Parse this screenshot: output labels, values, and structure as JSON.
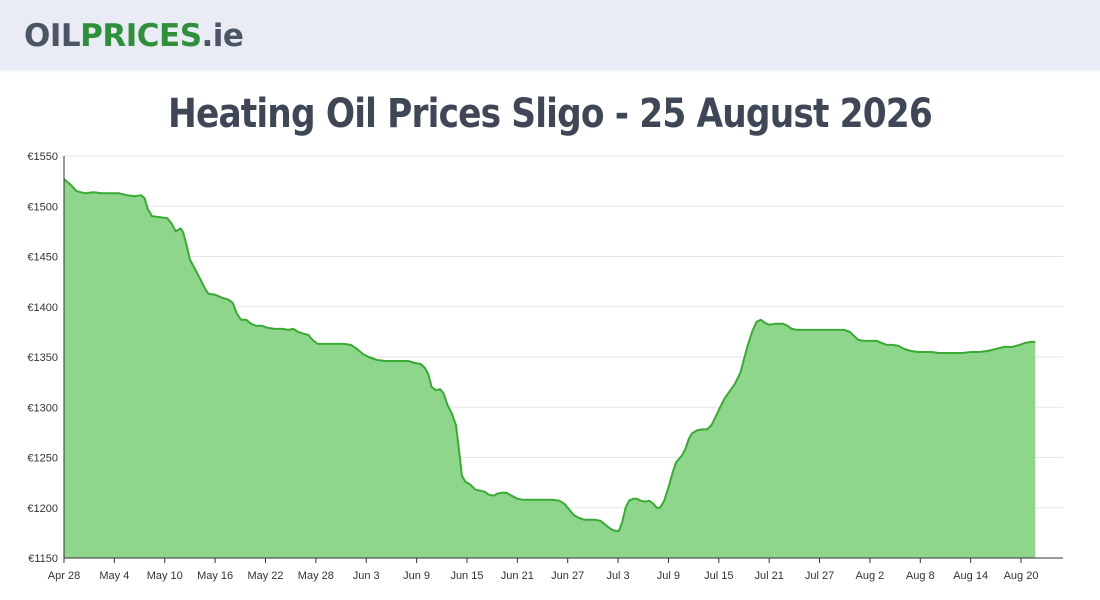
{
  "header": {
    "logo": {
      "part1": "OIL",
      "part2": "PRICES",
      "part3": ".ie"
    }
  },
  "page": {
    "title": "Heating Oil Prices Sligo - 25 August 2026"
  },
  "colors": {
    "line": "#3aaa35",
    "fill": "#8fd68d",
    "grid": "#e6e6e6",
    "axis": "#333333"
  },
  "chart_data": {
    "type": "area",
    "title": "",
    "xlabel": "",
    "ylabel": "",
    "ylim": [
      1150,
      1550
    ],
    "yticks": [
      1150,
      1200,
      1250,
      1300,
      1350,
      1400,
      1450,
      1500,
      1550
    ],
    "y_tick_prefix": "€",
    "grid": true,
    "legend": "none",
    "x_tick_labels": [
      "Apr 28",
      "May 4",
      "May 10",
      "May 16",
      "May 22",
      "May 28",
      "Jun 3",
      "Jun 9",
      "Jun 15",
      "Jun 21",
      "Jun 27",
      "Jul 3",
      "Jul 9",
      "Jul 15",
      "Jul 21",
      "Jul 27",
      "Aug 2",
      "Aug 8",
      "Aug 14",
      "Aug 20"
    ],
    "x_range_days": [
      0,
      119
    ],
    "points": [
      [
        0,
        1527
      ],
      [
        0.7,
        1522
      ],
      [
        1.5,
        1515
      ],
      [
        2.5,
        1513
      ],
      [
        3.5,
        1514
      ],
      [
        4.5,
        1513
      ],
      [
        5.5,
        1513
      ],
      [
        6.5,
        1513
      ],
      [
        7.5,
        1511
      ],
      [
        8.5,
        1510
      ],
      [
        9.2,
        1511
      ],
      [
        9.6,
        1508
      ],
      [
        10,
        1497
      ],
      [
        10.5,
        1490
      ],
      [
        11.5,
        1489
      ],
      [
        12.3,
        1488
      ],
      [
        12.8,
        1483
      ],
      [
        13.3,
        1475
      ],
      [
        13.9,
        1478
      ],
      [
        14.2,
        1474
      ],
      [
        14.7,
        1458
      ],
      [
        15,
        1447
      ],
      [
        15.7,
        1436
      ],
      [
        16.2,
        1428
      ],
      [
        16.8,
        1418
      ],
      [
        17.2,
        1413
      ],
      [
        18,
        1412
      ],
      [
        18.8,
        1409
      ],
      [
        19.6,
        1407
      ],
      [
        20.1,
        1404
      ],
      [
        20.6,
        1393
      ],
      [
        21.1,
        1387
      ],
      [
        21.7,
        1387
      ],
      [
        22.3,
        1383
      ],
      [
        22.9,
        1381
      ],
      [
        23.6,
        1381
      ],
      [
        24.3,
        1379
      ],
      [
        25.1,
        1378
      ],
      [
        26,
        1378
      ],
      [
        26.7,
        1377
      ],
      [
        27.3,
        1378
      ],
      [
        27.9,
        1375
      ],
      [
        28.6,
        1373
      ],
      [
        29.1,
        1372
      ],
      [
        29.6,
        1367
      ],
      [
        30.2,
        1363
      ],
      [
        31,
        1363
      ],
      [
        32,
        1363
      ],
      [
        33.3,
        1363
      ],
      [
        34.2,
        1362
      ],
      [
        34.9,
        1358
      ],
      [
        35.6,
        1353
      ],
      [
        36.3,
        1350
      ],
      [
        37.3,
        1347
      ],
      [
        38.3,
        1346
      ],
      [
        39.3,
        1346
      ],
      [
        40.3,
        1346
      ],
      [
        41,
        1346
      ],
      [
        41.8,
        1344
      ],
      [
        42.5,
        1343
      ],
      [
        43,
        1339
      ],
      [
        43.4,
        1333
      ],
      [
        43.8,
        1320
      ],
      [
        44.3,
        1317
      ],
      [
        44.8,
        1318
      ],
      [
        45.2,
        1314
      ],
      [
        45.7,
        1302
      ],
      [
        46.2,
        1294
      ],
      [
        46.7,
        1282
      ],
      [
        47.1,
        1254
      ],
      [
        47.4,
        1232
      ],
      [
        47.8,
        1226
      ],
      [
        48.4,
        1223
      ],
      [
        49,
        1218
      ],
      [
        49.6,
        1217
      ],
      [
        50.1,
        1216
      ],
      [
        50.6,
        1213
      ],
      [
        51.2,
        1212
      ],
      [
        51.6,
        1214
      ],
      [
        52.1,
        1215
      ],
      [
        52.7,
        1215
      ],
      [
        53.3,
        1212
      ],
      [
        54,
        1209
      ],
      [
        54.6,
        1208
      ],
      [
        55.3,
        1208
      ],
      [
        56.2,
        1208
      ],
      [
        57.2,
        1208
      ],
      [
        58.2,
        1208
      ],
      [
        59,
        1207
      ],
      [
        59.6,
        1204
      ],
      [
        60.2,
        1198
      ],
      [
        60.7,
        1193
      ],
      [
        61.3,
        1190
      ],
      [
        62,
        1188
      ],
      [
        62.6,
        1188
      ],
      [
        63.3,
        1188
      ],
      [
        63.9,
        1187
      ],
      [
        64.5,
        1183
      ],
      [
        65.1,
        1179
      ],
      [
        65.7,
        1177
      ],
      [
        66.1,
        1177
      ],
      [
        66.5,
        1186
      ],
      [
        66.9,
        1200
      ],
      [
        67.3,
        1207
      ],
      [
        67.8,
        1209
      ],
      [
        68.2,
        1209
      ],
      [
        68.7,
        1207
      ],
      [
        69.2,
        1206
      ],
      [
        69.7,
        1207
      ],
      [
        70.2,
        1204
      ],
      [
        70.6,
        1200
      ],
      [
        71,
        1200
      ],
      [
        71.5,
        1207
      ],
      [
        72,
        1220
      ],
      [
        72.5,
        1235
      ],
      [
        72.9,
        1245
      ],
      [
        73.6,
        1252
      ],
      [
        74,
        1258
      ],
      [
        74.4,
        1268
      ],
      [
        74.8,
        1274
      ],
      [
        75.4,
        1277
      ],
      [
        76,
        1278
      ],
      [
        76.6,
        1278
      ],
      [
        77.1,
        1282
      ],
      [
        77.6,
        1290
      ],
      [
        78.1,
        1299
      ],
      [
        78.7,
        1309
      ],
      [
        79.3,
        1316
      ],
      [
        79.9,
        1323
      ],
      [
        80.6,
        1335
      ],
      [
        81,
        1348
      ],
      [
        81.5,
        1363
      ],
      [
        82,
        1376
      ],
      [
        82.5,
        1385
      ],
      [
        83,
        1387
      ],
      [
        83.5,
        1384
      ],
      [
        84,
        1382
      ],
      [
        84.8,
        1383
      ],
      [
        85.7,
        1383
      ],
      [
        86.2,
        1381
      ],
      [
        86.7,
        1378
      ],
      [
        87.3,
        1377
      ],
      [
        88.3,
        1377
      ],
      [
        89.3,
        1377
      ],
      [
        90.3,
        1377
      ],
      [
        91.3,
        1377
      ],
      [
        92.3,
        1377
      ],
      [
        93,
        1377
      ],
      [
        93.6,
        1375
      ],
      [
        94.1,
        1371
      ],
      [
        94.6,
        1367
      ],
      [
        95.3,
        1366
      ],
      [
        96.1,
        1366
      ],
      [
        96.8,
        1366
      ],
      [
        97.4,
        1364
      ],
      [
        98,
        1362
      ],
      [
        98.7,
        1362
      ],
      [
        99.4,
        1361
      ],
      [
        100.1,
        1358
      ],
      [
        100.9,
        1356
      ],
      [
        101.7,
        1355
      ],
      [
        102.5,
        1355
      ],
      [
        103.3,
        1355
      ],
      [
        104.2,
        1354
      ],
      [
        105,
        1354
      ],
      [
        106,
        1354
      ],
      [
        107,
        1354
      ],
      [
        108,
        1355
      ],
      [
        109,
        1355
      ],
      [
        110,
        1356
      ],
      [
        111,
        1358
      ],
      [
        112,
        1360
      ],
      [
        113,
        1360
      ],
      [
        113.8,
        1362
      ],
      [
        114.5,
        1364
      ],
      [
        115.2,
        1365
      ],
      [
        115.7,
        1365
      ]
    ]
  }
}
